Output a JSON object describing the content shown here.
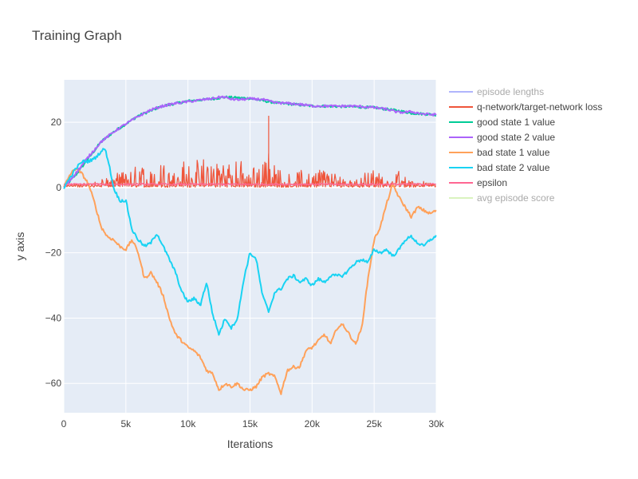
{
  "chart_data": {
    "type": "line",
    "title": "Training Graph",
    "xlabel": "Iterations",
    "ylabel": "y axis",
    "xlim": [
      0,
      30000
    ],
    "ylim": [
      -69,
      33
    ],
    "xticks": [
      0,
      5000,
      10000,
      15000,
      20000,
      25000,
      30000
    ],
    "xtick_labels": [
      "0",
      "5k",
      "10k",
      "15k",
      "20k",
      "25k",
      "30k"
    ],
    "yticks": [
      -60,
      -40,
      -20,
      0,
      20
    ],
    "ytick_labels": [
      "−60",
      "−40",
      "−20",
      "0",
      "20"
    ],
    "grid": true,
    "legend_position": "right",
    "series": [
      {
        "name": "episode lengths",
        "color": "#636efa",
        "visible": "legendonly",
        "x": [],
        "y": []
      },
      {
        "name": "q-network/target-network loss",
        "color": "#ef553b",
        "visible": true,
        "style": "noisy-spikes",
        "x": [
          0,
          1000,
          2000,
          3000,
          4000,
          5000,
          6000,
          7000,
          8000,
          9000,
          10000,
          11000,
          12000,
          13000,
          14000,
          15000,
          16000,
          16500,
          17000,
          18000,
          19000,
          20000,
          21000,
          22000,
          23000,
          24000,
          25000,
          26000,
          27000,
          28000,
          29000,
          30000
        ],
        "y": [
          0.5,
          1,
          2,
          3,
          4,
          6,
          7,
          8,
          9,
          10,
          8,
          9,
          11,
          9,
          9,
          8,
          9,
          22,
          7,
          5,
          6,
          6,
          7,
          4,
          5,
          8,
          6,
          3,
          6,
          3,
          2,
          1
        ]
      },
      {
        "name": "good state 1 value",
        "color": "#00cc96",
        "visible": true,
        "x": [
          0,
          1000,
          2000,
          3000,
          4000,
          6000,
          8000,
          10000,
          12000,
          13000,
          15000,
          17000,
          20000,
          23000,
          25000,
          27000,
          28000,
          30000
        ],
        "y": [
          0,
          4,
          9,
          14,
          17,
          22,
          25,
          26.5,
          27.2,
          27.7,
          27.3,
          26,
          25,
          24.8,
          24.5,
          23.5,
          22.8,
          22.3
        ]
      },
      {
        "name": "good state 2 value",
        "color": "#ab63fa",
        "visible": true,
        "x": [
          0,
          1000,
          2000,
          3000,
          4000,
          5000,
          6000,
          7000,
          8000,
          9000,
          10000,
          11000,
          12000,
          12800,
          13500,
          14000,
          15000,
          16000,
          17000,
          18000,
          19000,
          20000,
          21000,
          22000,
          23000,
          24000,
          25000,
          26000,
          27000,
          28000,
          29000,
          30000
        ],
        "y": [
          0,
          4.5,
          9.5,
          14,
          17,
          19.5,
          21.8,
          23.8,
          25,
          25.8,
          26.3,
          26.8,
          27.3,
          27.8,
          27.1,
          26.9,
          27.2,
          27.0,
          26.0,
          25.8,
          25.5,
          25.0,
          25.0,
          24.9,
          25.0,
          24.8,
          24.5,
          24.0,
          23.0,
          23.2,
          22.5,
          22.3
        ]
      },
      {
        "name": "bad state 1 value",
        "color": "#ffa15a",
        "visible": true,
        "x": [
          0,
          500,
          1000,
          1500,
          2000,
          2500,
          3000,
          3500,
          4000,
          4500,
          5000,
          5500,
          6000,
          6500,
          7000,
          7500,
          8000,
          8500,
          9000,
          9500,
          10000,
          10500,
          11000,
          11500,
          12000,
          12500,
          13000,
          13500,
          14000,
          14500,
          15000,
          15500,
          16000,
          16500,
          17000,
          17500,
          18000,
          18500,
          19000,
          19500,
          20000,
          20500,
          21000,
          21500,
          22000,
          22500,
          23000,
          23500,
          24000,
          24500,
          25000,
          25500,
          26000,
          26500,
          27000,
          27500,
          28000,
          28500,
          29000,
          29500,
          30000
        ],
        "y": [
          0,
          4,
          6,
          4,
          1,
          -5,
          -12,
          -15,
          -16,
          -18,
          -19,
          -16,
          -20,
          -28,
          -26,
          -29,
          -33,
          -40,
          -45,
          -47,
          -49,
          -50,
          -52,
          -56,
          -57,
          -62,
          -60,
          -61,
          -60,
          -62,
          -62,
          -61,
          -58,
          -57,
          -58,
          -63,
          -56,
          -55,
          -55,
          -50,
          -49,
          -47,
          -45,
          -48,
          -43,
          -42,
          -45,
          -48,
          -43,
          -28,
          -16,
          -12,
          -5,
          1,
          -3,
          -6,
          -9,
          -6,
          -7,
          -8,
          -7
        ]
      },
      {
        "name": "bad state 2 value",
        "color": "#19d3f3",
        "visible": true,
        "x": [
          0,
          500,
          1000,
          1500,
          2000,
          2500,
          3000,
          3300,
          3600,
          4000,
          4500,
          5000,
          5500,
          6000,
          6500,
          7000,
          7500,
          8000,
          8500,
          9000,
          9500,
          10000,
          10500,
          11000,
          11500,
          12000,
          12500,
          13000,
          13500,
          14000,
          14500,
          15000,
          15500,
          16000,
          16500,
          17000,
          17500,
          18000,
          18500,
          19000,
          19500,
          20000,
          20500,
          21000,
          21500,
          22000,
          22500,
          23000,
          23500,
          24000,
          24500,
          25000,
          25500,
          26000,
          26500,
          27000,
          27500,
          28000,
          28500,
          29000,
          29500,
          30000
        ],
        "y": [
          0,
          3,
          6,
          8,
          8,
          9,
          11,
          12,
          8,
          0,
          -4,
          -4,
          -13,
          -16,
          -18,
          -17,
          -14,
          -18,
          -22,
          -26,
          -32,
          -35,
          -34,
          -36,
          -29,
          -39,
          -45,
          -40,
          -43,
          -40,
          -28,
          -20,
          -22,
          -33,
          -38,
          -32,
          -31,
          -28,
          -27,
          -29,
          -28,
          -30,
          -28,
          -29,
          -27,
          -27,
          -27,
          -25,
          -23,
          -22,
          -23,
          -19,
          -20,
          -19,
          -21,
          -19,
          -16,
          -15,
          -17,
          -18,
          -16,
          -15
        ]
      },
      {
        "name": "epsilon",
        "color": "#ff6692",
        "visible": true,
        "x": [
          0,
          30000
        ],
        "y": [
          1,
          1
        ]
      },
      {
        "name": "avg episode score",
        "color": "#b6e880",
        "visible": "legendonly",
        "x": [],
        "y": []
      }
    ]
  }
}
